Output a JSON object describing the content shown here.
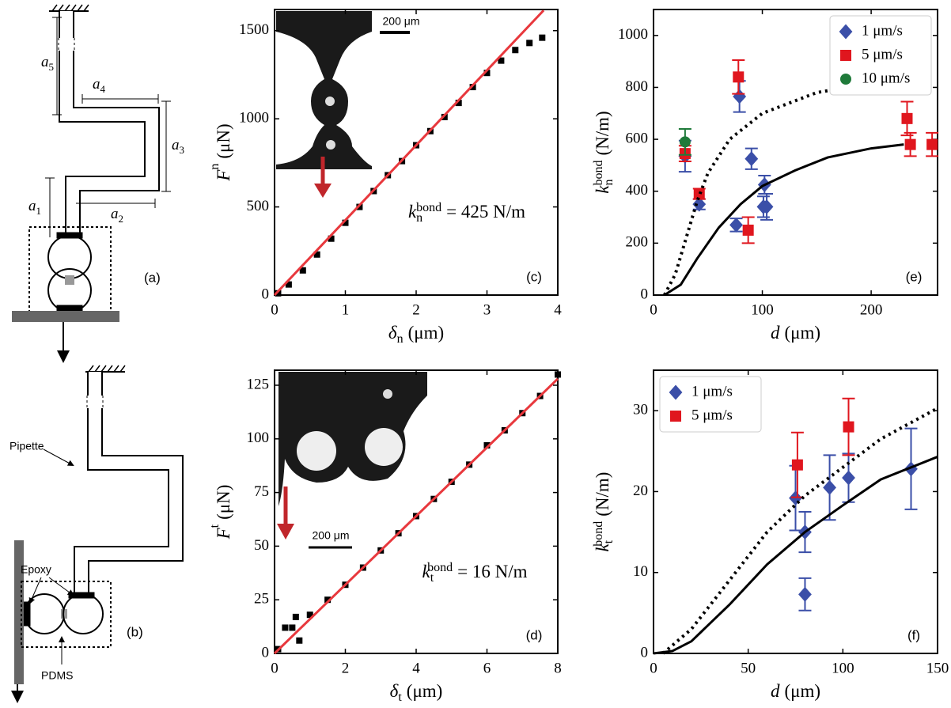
{
  "diagram_a": {
    "panel_label": "(a)",
    "dimensions": [
      {
        "base": "a",
        "sub": "1"
      },
      {
        "base": "a",
        "sub": "2"
      },
      {
        "base": "a",
        "sub": "3"
      },
      {
        "base": "a",
        "sub": "4"
      },
      {
        "base": "a",
        "sub": "5"
      }
    ]
  },
  "diagram_b": {
    "panel_label": "(b)",
    "pipette": "Pipette",
    "epoxy": "Epoxy",
    "pdms": "PDMS"
  },
  "chart_data": [
    {
      "type": "scatter",
      "panel_label": "(c)",
      "xlim": [
        0,
        4
      ],
      "xticks": [
        0,
        1,
        2,
        3,
        4
      ],
      "ylim": [
        0,
        1620
      ],
      "yticks": [
        0,
        500,
        1000,
        1500
      ],
      "x_label": {
        "base": "δ",
        "sub": "n",
        "unit": "(μm)"
      },
      "y_label": {
        "base": "F",
        "sup": "n",
        "unit": "(μN)"
      },
      "annotation": {
        "base": "k",
        "sub": "n",
        "sup": "bond",
        "text": "= 425 N/m"
      },
      "inset_scale": "200 μm",
      "series": [
        {
          "color": "#000000",
          "marker": "square",
          "x": [
            0.05,
            0.2,
            0.4,
            0.6,
            0.8,
            1.0,
            1.2,
            1.4,
            1.6,
            1.8,
            2.0,
            2.2,
            2.4,
            2.6,
            2.8,
            3.0,
            3.2,
            3.4,
            3.6,
            3.78
          ],
          "values": [
            10,
            60,
            140,
            230,
            320,
            410,
            500,
            590,
            680,
            760,
            850,
            930,
            1010,
            1090,
            1180,
            1260,
            1330,
            1390,
            1430,
            1460
          ]
        },
        {
          "color": "#e8383d",
          "kind": "line",
          "x": [
            0,
            3.8
          ],
          "values": [
            0,
            1615
          ]
        }
      ]
    },
    {
      "type": "scatter",
      "panel_label": "(d)",
      "xlim": [
        0,
        8
      ],
      "xticks": [
        0,
        2,
        4,
        6,
        8
      ],
      "ylim": [
        0,
        132
      ],
      "yticks": [
        0,
        25,
        50,
        75,
        100,
        125
      ],
      "x_label": {
        "base": "δ",
        "sub": "t",
        "unit": "(μm)"
      },
      "y_label": {
        "base": "F",
        "sup": "t",
        "unit": "(μN)"
      },
      "annotation": {
        "base": "k",
        "sub": "t",
        "sup": "bond",
        "text": "= 16 N/m"
      },
      "inset_scale": "200 μm",
      "series": [
        {
          "color": "#000000",
          "marker": "square",
          "x": [
            0.1,
            0.3,
            0.5,
            0.7,
            0.6,
            1.0,
            1.5,
            2.0,
            2.5,
            3.0,
            3.5,
            4.0,
            4.5,
            5.0,
            5.5,
            6.0,
            6.5,
            7.0,
            7.5,
            8.0
          ],
          "values": [
            2,
            12,
            12,
            6,
            17,
            18,
            25,
            32,
            40,
            48,
            56,
            64,
            72,
            80,
            88,
            97,
            104,
            112,
            120,
            130
          ]
        },
        {
          "color": "#e8383d",
          "kind": "line",
          "x": [
            0,
            8
          ],
          "values": [
            0,
            128
          ]
        }
      ]
    },
    {
      "type": "scatter",
      "panel_label": "(e)",
      "xlim": [
        0,
        261
      ],
      "xticks": [
        0,
        100,
        200
      ],
      "ylim": [
        0,
        1100
      ],
      "yticks": [
        0,
        200,
        400,
        600,
        800,
        1000
      ],
      "x_label": {
        "base": "d",
        "unit": "(μm)"
      },
      "y_label": {
        "base": "k",
        "sub": "n",
        "sup": "bond",
        "unit": "(N/m)"
      },
      "legend": "upper right",
      "series": [
        {
          "name": "1 μm/s",
          "color": "#3b4fa8",
          "marker": "diamond",
          "x": [
            29,
            42,
            76,
            79,
            90,
            101,
            102,
            104
          ],
          "values": [
            535,
            350,
            270,
            765,
            525,
            340,
            425,
            340
          ],
          "errors": [
            60,
            20,
            25,
            60,
            40,
            40,
            35,
            50
          ]
        },
        {
          "name": "5 μm/s",
          "color": "#e0161e",
          "marker": "square",
          "x": [
            29,
            42,
            78,
            87,
            233,
            236,
            256
          ],
          "values": [
            545,
            390,
            840,
            250,
            680,
            580,
            580
          ],
          "errors": [
            30,
            20,
            65,
            50,
            65,
            45,
            45
          ]
        },
        {
          "name": "10 μm/s",
          "color": "#1f7a3a",
          "marker": "circle",
          "x": [
            29
          ],
          "values": [
            590
          ],
          "errors": [
            50
          ]
        },
        {
          "color": "#000000",
          "kind": "line",
          "x": [
            10,
            25,
            40,
            60,
            80,
            100,
            130,
            160,
            200,
            230
          ],
          "values": [
            0,
            40,
            140,
            260,
            350,
            420,
            480,
            530,
            565,
            580
          ]
        },
        {
          "color": "#000000",
          "kind": "dotted",
          "x": [
            10,
            20,
            30,
            40,
            50,
            70,
            100,
            150,
            200,
            230
          ],
          "values": [
            0,
            80,
            220,
            360,
            470,
            600,
            700,
            780,
            815,
            820
          ]
        }
      ]
    },
    {
      "type": "scatter",
      "panel_label": "(f)",
      "xlim": [
        0,
        150
      ],
      "xticks": [
        0,
        50,
        100,
        150
      ],
      "ylim": [
        0,
        35
      ],
      "yticks": [
        0,
        10,
        20,
        30
      ],
      "x_label": {
        "base": "d",
        "unit": "(μm)"
      },
      "y_label": {
        "base": "k",
        "sub": "t",
        "sup": "bond",
        "unit": "(N/m)"
      },
      "legend": "upper left",
      "series": [
        {
          "name": "1 μm/s",
          "color": "#3b4fa8",
          "marker": "diamond",
          "x": [
            75,
            80,
            80,
            93,
            103,
            136
          ],
          "values": [
            19.2,
            15,
            7.3,
            20.5,
            21.7,
            22.8
          ],
          "errors": [
            4,
            2.5,
            2,
            4,
            3,
            5
          ]
        },
        {
          "name": "5 μm/s",
          "color": "#e0161e",
          "marker": "square",
          "x": [
            76,
            103
          ],
          "values": [
            23.3,
            28
          ],
          "errors": [
            4,
            3.5
          ]
        },
        {
          "color": "#000000",
          "kind": "line",
          "x": [
            0,
            10,
            20,
            40,
            60,
            80,
            100,
            120,
            150
          ],
          "values": [
            0,
            0.3,
            1.5,
            6,
            11,
            15,
            18.3,
            21.5,
            24.3
          ]
        },
        {
          "color": "#000000",
          "kind": "dotted",
          "x": [
            5,
            20,
            40,
            60,
            80,
            100,
            120,
            150
          ],
          "values": [
            0,
            3,
            9,
            15,
            19.5,
            23,
            26.5,
            30.3
          ]
        }
      ]
    }
  ]
}
